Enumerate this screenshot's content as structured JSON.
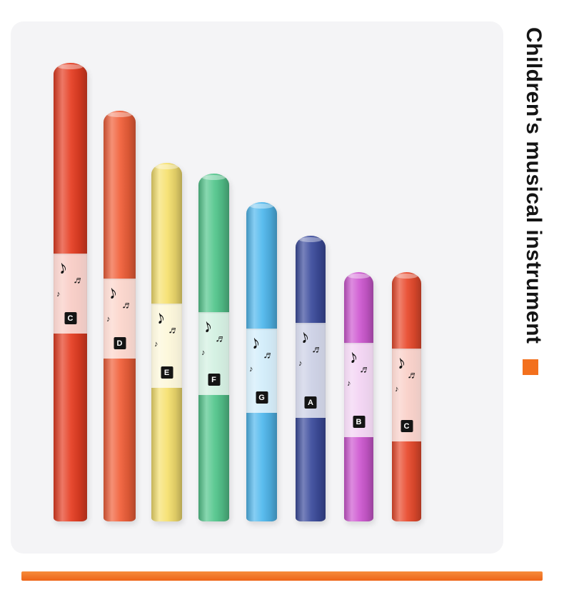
{
  "page": {
    "side_text": "Children's musical instrument",
    "accent_color": "#f3701d",
    "bottom_bar_color": "#f07322",
    "card_background": "#f4f4f6"
  },
  "decor": {
    "glyph_a": "♪",
    "glyph_b": "♬",
    "glyph_c": "♪"
  },
  "tubes": [
    {
      "note": "C",
      "color": "#e63e23"
    },
    {
      "note": "D",
      "color": "#f1603a"
    },
    {
      "note": "E",
      "color": "#f6e170"
    },
    {
      "note": "F",
      "color": "#55c78e"
    },
    {
      "note": "G",
      "color": "#52b9ee"
    },
    {
      "note": "A",
      "color": "#3d4d9e"
    },
    {
      "note": "B",
      "color": "#cf5ad2"
    },
    {
      "note": "C",
      "color": "#e94b2e"
    }
  ]
}
